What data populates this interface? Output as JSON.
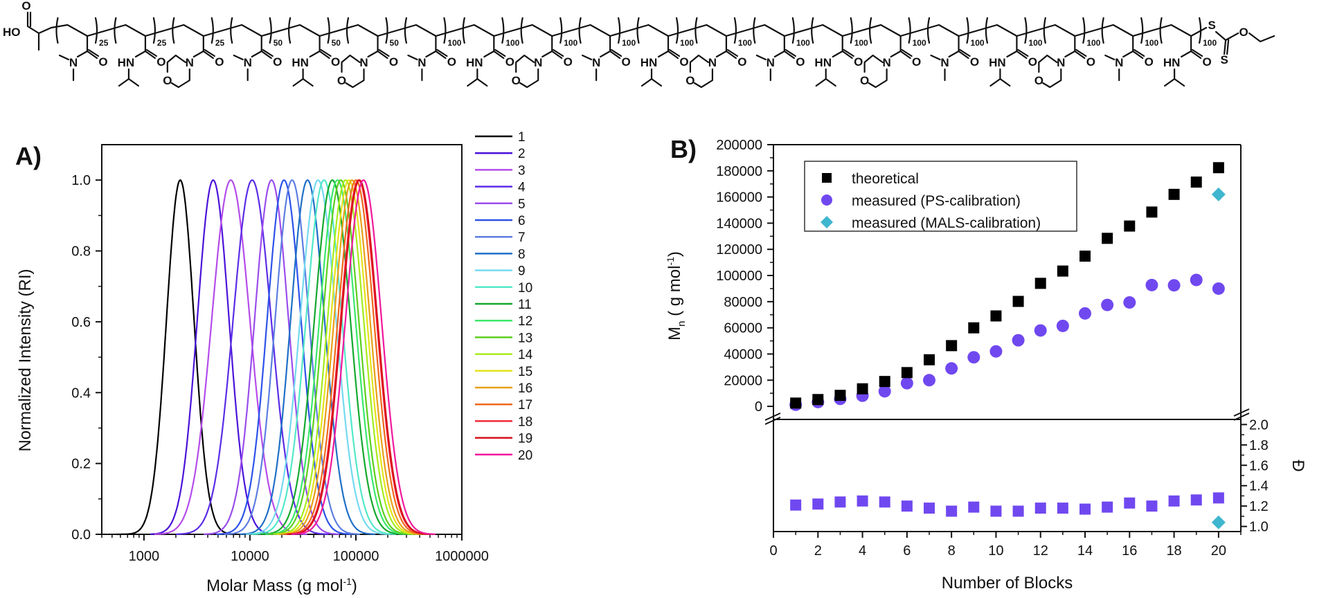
{
  "structure": {
    "end_group_left": "HO",
    "end_group_right": "S-C(=S)-O-Et",
    "monomer_labels": {
      "DMA": "N,N-dimethylacrylamide",
      "NIPAM": "N-isopropylacrylamide",
      "NAM": "N-acryloylmorpholine"
    },
    "blocks": [
      {
        "monomer": "DMA",
        "dp": "25"
      },
      {
        "monomer": "NIPAM",
        "dp": "25"
      },
      {
        "monomer": "NAM",
        "dp": "25"
      },
      {
        "monomer": "DMA",
        "dp": "50"
      },
      {
        "monomer": "NIPAM",
        "dp": "50"
      },
      {
        "monomer": "NAM",
        "dp": "50"
      },
      {
        "monomer": "DMA",
        "dp": "100"
      },
      {
        "monomer": "NIPAM",
        "dp": "100"
      },
      {
        "monomer": "NAM",
        "dp": "100"
      },
      {
        "monomer": "DMA",
        "dp": "100"
      },
      {
        "monomer": "NIPAM",
        "dp": "100"
      },
      {
        "monomer": "NAM",
        "dp": "100"
      },
      {
        "monomer": "DMA",
        "dp": "100"
      },
      {
        "monomer": "NIPAM",
        "dp": "100"
      },
      {
        "monomer": "NAM",
        "dp": "100"
      },
      {
        "monomer": "DMA",
        "dp": "100"
      },
      {
        "monomer": "NIPAM",
        "dp": "100"
      },
      {
        "monomer": "NAM",
        "dp": "100"
      },
      {
        "monomer": "DMA",
        "dp": "100"
      },
      {
        "monomer": "NIPAM",
        "dp": "100"
      }
    ]
  },
  "chart_data": [
    {
      "panel_label": "A)",
      "type": "line",
      "title": "",
      "xlabel": "Molar Mass (g mol",
      "xlabel_sup": "-1",
      "xlabel_end": ")",
      "ylabel": "Normalized Intensity (RI)",
      "xscale": "log",
      "xlim": [
        400,
        1000000
      ],
      "ylim": [
        0,
        1.1
      ],
      "xticks": [
        1000,
        10000,
        100000,
        1000000
      ],
      "xtick_labels": [
        "1000",
        "10000",
        "100000",
        "1000000"
      ],
      "yticks": [
        0.0,
        0.2,
        0.4,
        0.6,
        0.8,
        1.0
      ],
      "ytick_labels": [
        "0.0",
        "0.2",
        "0.4",
        "0.6",
        "0.8",
        "1.0"
      ],
      "legend_position": "right-outside",
      "series": [
        {
          "name": "1",
          "color": "#000000",
          "peak_M": 2200,
          "sigma_log": 0.13,
          "start_M": 550
        },
        {
          "name": "2",
          "color": "#4B12D8",
          "peak_M": 4500,
          "sigma_log": 0.15,
          "start_M": 1150
        },
        {
          "name": "3",
          "color": "#B54BEA",
          "peak_M": 6600,
          "sigma_log": 0.18
        },
        {
          "name": "4",
          "color": "#5A2CE6",
          "peak_M": 10500,
          "sigma_log": 0.18
        },
        {
          "name": "5",
          "color": "#9A4CEB",
          "peak_M": 16000,
          "sigma_log": 0.16
        },
        {
          "name": "6",
          "color": "#2C52E8",
          "peak_M": 21000,
          "sigma_log": 0.16
        },
        {
          "name": "7",
          "color": "#5C7DE0",
          "peak_M": 25000,
          "sigma_log": 0.16
        },
        {
          "name": "8",
          "color": "#1E6FC7",
          "peak_M": 35000,
          "sigma_log": 0.16
        },
        {
          "name": "9",
          "color": "#74D9F0",
          "peak_M": 44000,
          "sigma_log": 0.17
        },
        {
          "name": "10",
          "color": "#52E8C8",
          "peak_M": 50000,
          "sigma_log": 0.17
        },
        {
          "name": "11",
          "color": "#14A82E",
          "peak_M": 60000,
          "sigma_log": 0.17
        },
        {
          "name": "12",
          "color": "#3BE86A",
          "peak_M": 67000,
          "sigma_log": 0.17
        },
        {
          "name": "13",
          "color": "#5CCF1E",
          "peak_M": 72000,
          "sigma_log": 0.17
        },
        {
          "name": "14",
          "color": "#A6EC1C",
          "peak_M": 80000,
          "sigma_log": 0.17
        },
        {
          "name": "15",
          "color": "#E4E21A",
          "peak_M": 86000,
          "sigma_log": 0.17
        },
        {
          "name": "16",
          "color": "#E8A016",
          "peak_M": 92000,
          "sigma_log": 0.17
        },
        {
          "name": "17",
          "color": "#F0671A",
          "peak_M": 100000,
          "sigma_log": 0.17
        },
        {
          "name": "18",
          "color": "#F0283A",
          "peak_M": 106000,
          "sigma_log": 0.17
        },
        {
          "name": "19",
          "color": "#D8101A",
          "peak_M": 108000,
          "sigma_log": 0.17
        },
        {
          "name": "20",
          "color": "#F0189C",
          "peak_M": 118000,
          "sigma_log": 0.17
        }
      ]
    },
    {
      "panel_label": "B)",
      "type": "scatter",
      "title": "",
      "xlabel": "Number of Blocks",
      "xlim": [
        0,
        21
      ],
      "xticks": [
        0,
        2,
        4,
        6,
        8,
        10,
        12,
        14,
        16,
        18,
        20
      ],
      "xtick_labels": [
        "0",
        "2",
        "4",
        "6",
        "8",
        "10",
        "12",
        "14",
        "16",
        "18",
        "20"
      ],
      "upper": {
        "ylabel": "M",
        "ylabel_sub": "n",
        "ylabel_rest": " ( g mol",
        "ylabel_sup": "-1",
        "ylabel_end": ")",
        "ylim": [
          -10000,
          200000
        ],
        "yticks": [
          0,
          20000,
          40000,
          60000,
          80000,
          100000,
          120000,
          140000,
          160000,
          180000,
          200000
        ],
        "ytick_labels": [
          "0",
          "20000",
          "40000",
          "60000",
          "80000",
          "100000",
          "120000",
          "140000",
          "160000",
          "180000",
          "200000"
        ],
        "legend_position": "top-left",
        "series": [
          {
            "name": "theoretical",
            "marker": "square",
            "color": "#000000",
            "x": [
              1,
              2,
              3,
              4,
              5,
              6,
              7,
              8,
              9,
              10,
              11,
              12,
              13,
              14,
              15,
              16,
              17,
              18,
              19,
              20
            ],
            "y": [
              2500,
              5200,
              8400,
              13400,
              19000,
              25800,
              35600,
              46400,
              60000,
              69100,
              80200,
              94000,
              103400,
              114800,
              128400,
              137800,
              148500,
              162000,
              171400,
              182400
            ]
          },
          {
            "name": "measured (PS-calibration)",
            "marker": "circle",
            "color": "#7048F0",
            "x": [
              1,
              2,
              3,
              4,
              5,
              6,
              7,
              8,
              9,
              10,
              11,
              12,
              13,
              14,
              15,
              16,
              17,
              18,
              19,
              20
            ],
            "y": [
              1200,
              3300,
              5700,
              8100,
              11500,
              17700,
              20000,
              29000,
              37500,
              42000,
              50500,
              58000,
              61500,
              71000,
              77500,
              79400,
              92700,
              92500,
              96600,
              90000
            ]
          },
          {
            "name": "measured (MALS-calibration)",
            "marker": "diamond",
            "color": "#3FB6CF",
            "x": [
              20
            ],
            "y": [
              162000
            ]
          }
        ]
      },
      "lower": {
        "ylabel": "Đ",
        "ylim": [
          0.95,
          2.05
        ],
        "yticks": [
          1.0,
          1.2,
          1.4,
          1.6,
          1.8,
          2.0
        ],
        "ytick_labels": [
          "1.0",
          "1.2",
          "1.4",
          "1.6",
          "1.8",
          "2.0"
        ],
        "series": [
          {
            "name": "Đ (PS-calibration)",
            "marker": "square",
            "color": "#7048F0",
            "x": [
              1,
              2,
              3,
              4,
              5,
              6,
              7,
              8,
              9,
              10,
              11,
              12,
              13,
              14,
              15,
              16,
              17,
              18,
              19,
              20
            ],
            "y": [
              1.21,
              1.22,
              1.24,
              1.25,
              1.24,
              1.2,
              1.18,
              1.15,
              1.19,
              1.15,
              1.15,
              1.18,
              1.18,
              1.17,
              1.19,
              1.23,
              1.2,
              1.25,
              1.26,
              1.28
            ]
          },
          {
            "name": "Đ (MALS-calibration)",
            "marker": "diamond",
            "color": "#3FB6CF",
            "x": [
              20
            ],
            "y": [
              1.04
            ]
          }
        ]
      }
    }
  ]
}
